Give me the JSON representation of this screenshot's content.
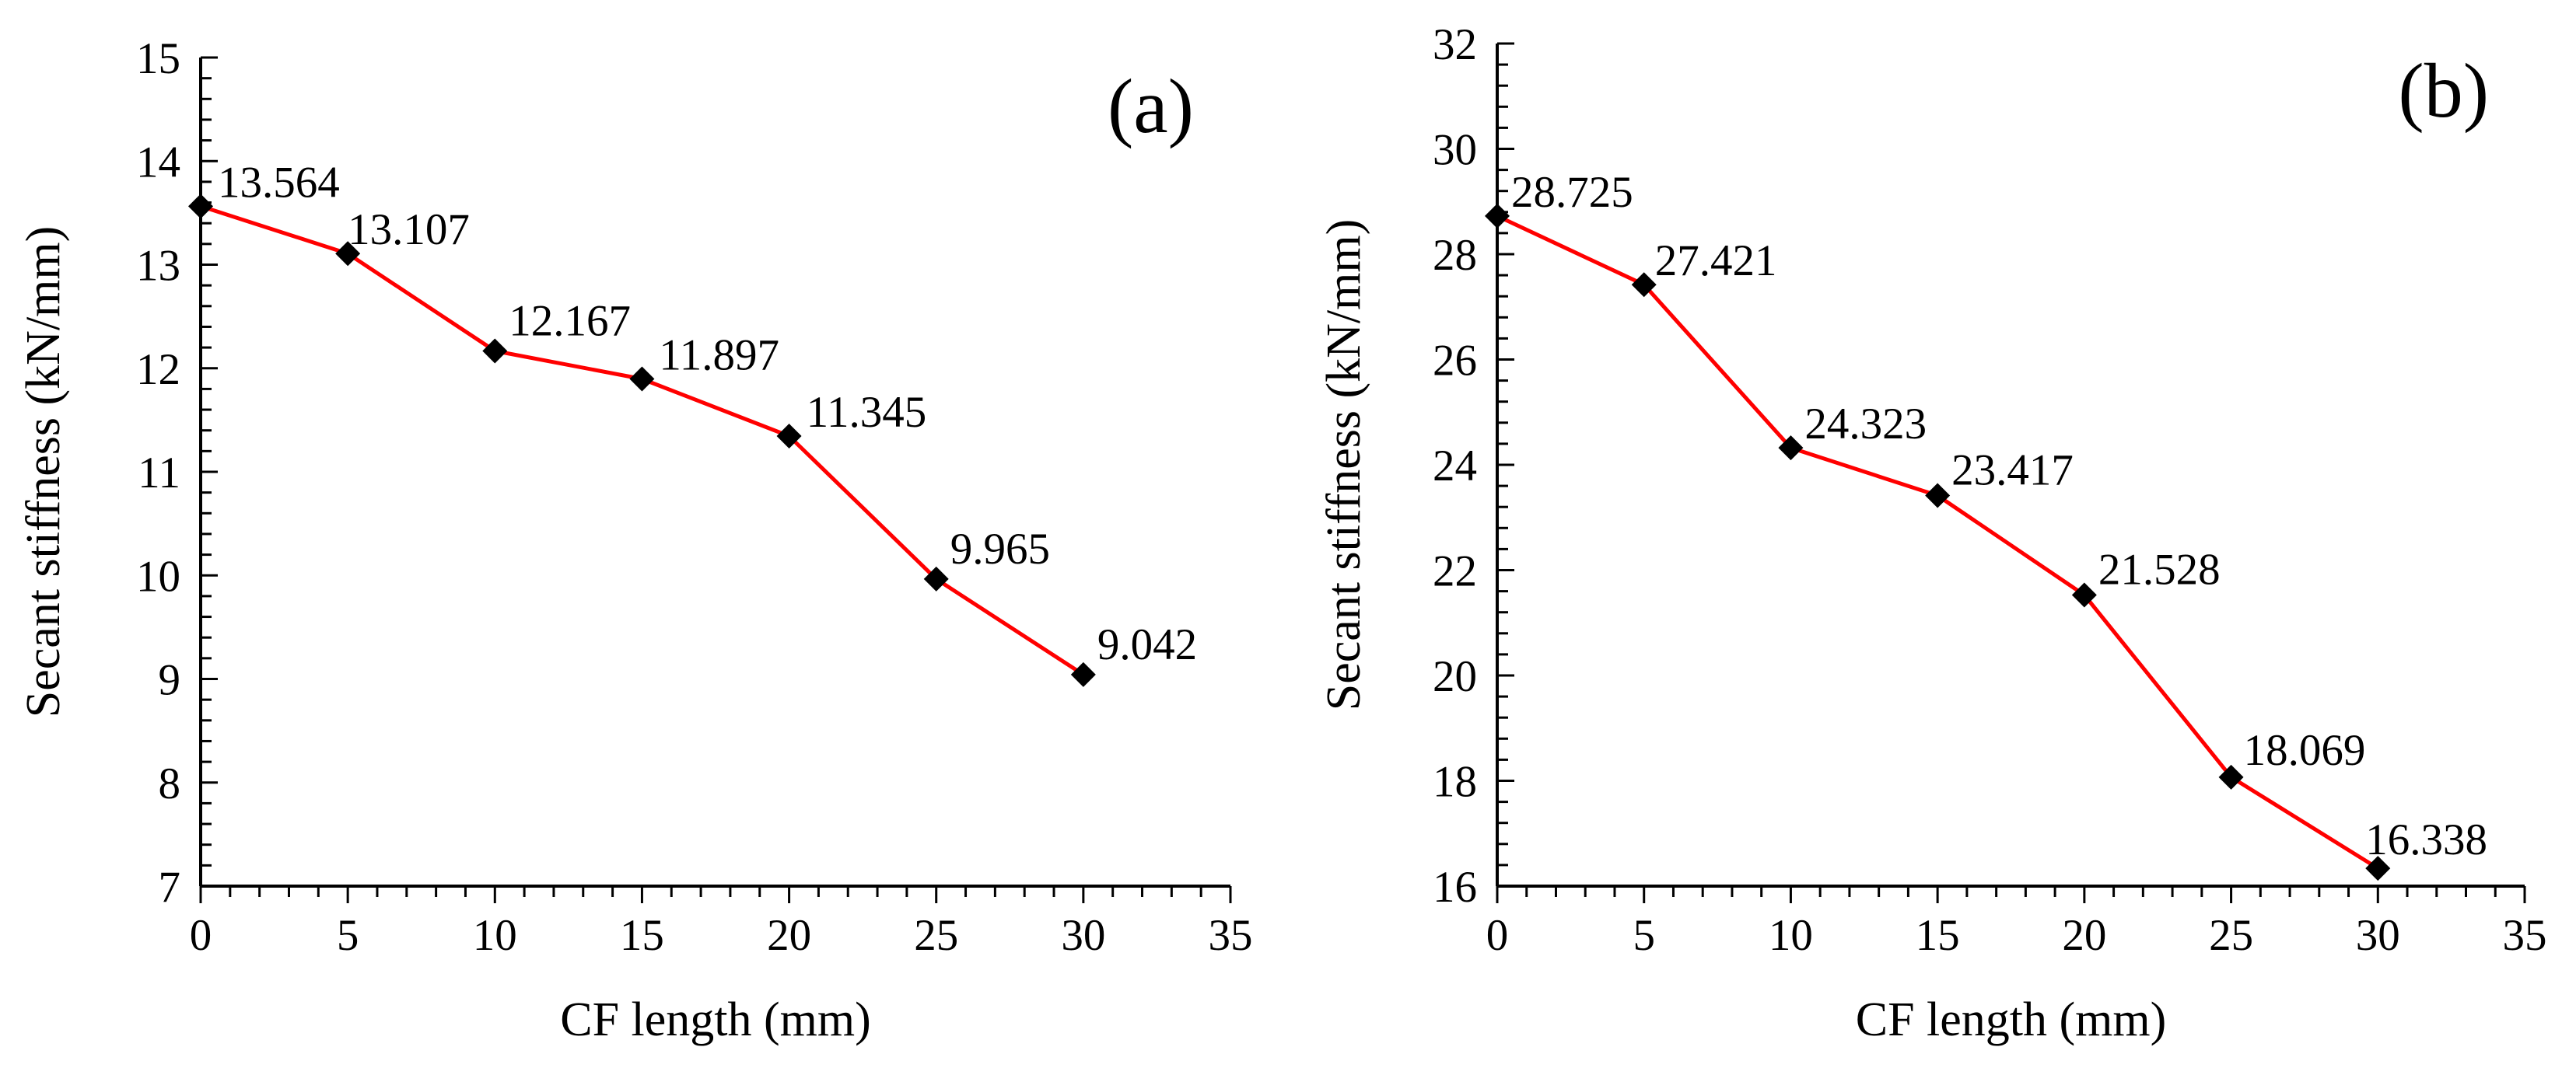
{
  "chart_data": [
    {
      "type": "line",
      "panel_label": "(a)",
      "title": "",
      "xlabel": "CF length (mm)",
      "ylabel": "Secant stiffness (kN/mm)",
      "xlim": [
        0,
        35
      ],
      "ylim": [
        7,
        15
      ],
      "x_ticks": [
        0,
        5,
        10,
        15,
        20,
        25,
        30,
        35
      ],
      "y_ticks": [
        7,
        8,
        9,
        10,
        11,
        12,
        13,
        14,
        15
      ],
      "x_minor_step": 1,
      "y_minor_step": 0.2,
      "grid": false,
      "legend": "none",
      "series": [
        {
          "name": "Secant stiffness",
          "color": "#ff0000",
          "marker": "diamond",
          "x": [
            0,
            5,
            10,
            15,
            20,
            25,
            30
          ],
          "values": [
            13.564,
            13.107,
            12.167,
            11.897,
            11.345,
            9.965,
            9.042
          ],
          "labels": [
            "13.564",
            "13.107",
            "12.167",
            "11.897",
            "11.345",
            "9.965",
            "9.042"
          ]
        }
      ]
    },
    {
      "type": "line",
      "panel_label": "(b)",
      "title": "",
      "xlabel": "CF length (mm)",
      "ylabel": "Secant stiffness  (kN/mm)",
      "xlim": [
        0,
        35
      ],
      "ylim": [
        16,
        32
      ],
      "x_ticks": [
        0,
        5,
        10,
        15,
        20,
        25,
        30,
        35
      ],
      "y_ticks": [
        16,
        18,
        20,
        22,
        24,
        26,
        28,
        30,
        32
      ],
      "x_minor_step": 1,
      "y_minor_step": 0.4,
      "grid": false,
      "legend": "none",
      "series": [
        {
          "name": "Secant stiffness",
          "color": "#ff0000",
          "marker": "diamond",
          "x": [
            0,
            5,
            10,
            15,
            20,
            25,
            30
          ],
          "values": [
            28.725,
            27.421,
            24.323,
            23.417,
            21.528,
            18.069,
            16.338
          ],
          "labels": [
            "28.725",
            "27.421",
            "24.323",
            "23.417",
            "21.528",
            "18.069",
            "16.338"
          ]
        }
      ]
    }
  ]
}
